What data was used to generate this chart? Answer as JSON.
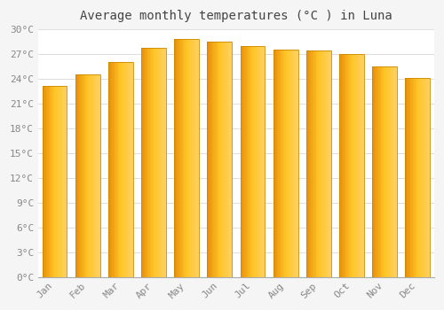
{
  "title": "Average monthly temperatures (°C ) in Luna",
  "months": [
    "Jan",
    "Feb",
    "Mar",
    "Apr",
    "May",
    "Jun",
    "Jul",
    "Aug",
    "Sep",
    "Oct",
    "Nov",
    "Dec"
  ],
  "temperatures": [
    23.2,
    24.5,
    26.0,
    27.8,
    28.8,
    28.5,
    28.0,
    27.6,
    27.5,
    27.0,
    25.5,
    24.1
  ],
  "bar_color_left": "#E8900A",
  "bar_color_center": "#FFC526",
  "bar_color_right": "#FFD060",
  "bar_edge_color": "#CC8800",
  "background_color": "#F5F5F5",
  "plot_bg_color": "#FFFFFF",
  "grid_color": "#DDDDDD",
  "text_color": "#888888",
  "title_color": "#444444",
  "ylim": [
    0,
    30
  ],
  "ytick_step": 3,
  "title_fontsize": 10,
  "tick_fontsize": 8
}
